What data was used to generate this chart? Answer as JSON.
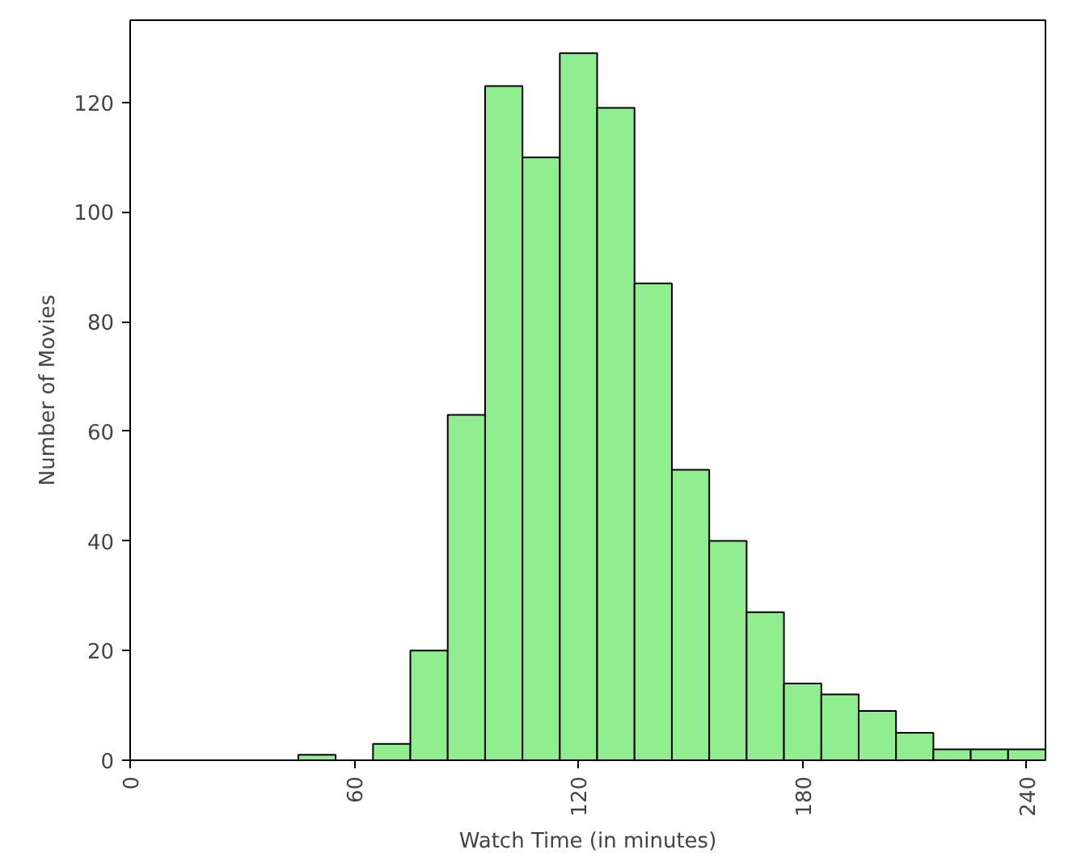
{
  "chart_data": {
    "type": "histogram",
    "xlabel": "Watch Time (in minutes)",
    "ylabel": "Number of Movies",
    "bins": [
      45,
      55,
      65,
      75,
      85,
      95,
      105,
      115,
      125,
      135,
      145,
      155,
      165,
      175,
      185,
      195,
      205,
      215,
      225,
      235,
      245
    ],
    "values": [
      1,
      0,
      3,
      20,
      63,
      123,
      110,
      129,
      119,
      87,
      53,
      40,
      27,
      14,
      12,
      9,
      5,
      2,
      2,
      2
    ],
    "color": "#90ee90",
    "xlim": [
      0,
      245
    ],
    "xticks": [
      0,
      60,
      120,
      180,
      240
    ],
    "ylim": [
      0,
      135
    ],
    "yticks": [
      0,
      20,
      40,
      60,
      80,
      100,
      120
    ],
    "grid": false
  }
}
